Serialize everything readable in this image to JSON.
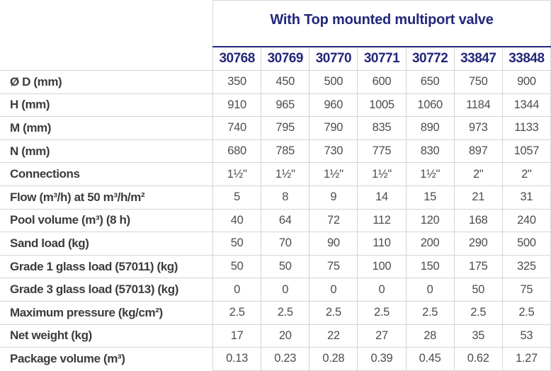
{
  "table": {
    "title": "With Top mounted multiport valve",
    "codes": [
      "30768",
      "30769",
      "30770",
      "30771",
      "30772",
      "33847",
      "33848"
    ],
    "rows": [
      {
        "label": "Ø D (mm)",
        "values": [
          "350",
          "450",
          "500",
          "600",
          "650",
          "750",
          "900"
        ]
      },
      {
        "label": "H (mm)",
        "values": [
          "910",
          "965",
          "960",
          "1005",
          "1060",
          "1184",
          "1344"
        ]
      },
      {
        "label": "M (mm)",
        "values": [
          "740",
          "795",
          "790",
          "835",
          "890",
          "973",
          "1133"
        ]
      },
      {
        "label": "N (mm)",
        "values": [
          "680",
          "785",
          "730",
          "775",
          "830",
          "897",
          "1057"
        ]
      },
      {
        "label": "Connections",
        "values": [
          "1½\"",
          "1½\"",
          "1½\"",
          "1½\"",
          "1½\"",
          "2\"",
          "2\""
        ]
      },
      {
        "label": "Flow (m³/h) at 50 m³/h/m²",
        "values": [
          "5",
          "8",
          "9",
          "14",
          "15",
          "21",
          "31"
        ]
      },
      {
        "label": "Pool volume (m³) (8 h)",
        "values": [
          "40",
          "64",
          "72",
          "112",
          "120",
          "168",
          "240"
        ]
      },
      {
        "label": "Sand load (kg)",
        "values": [
          "50",
          "70",
          "90",
          "110",
          "200",
          "290",
          "500"
        ]
      },
      {
        "label": "Grade 1 glass load (57011) (kg)",
        "values": [
          "50",
          "50",
          "75",
          "100",
          "150",
          "175",
          "325"
        ]
      },
      {
        "label": "Grade 3 glass load (57013) (kg)",
        "values": [
          "0",
          "0",
          "0",
          "0",
          "0",
          "50",
          "75"
        ]
      },
      {
        "label": "Maximum pressure (kg/cm²)",
        "values": [
          "2.5",
          "2.5",
          "2.5",
          "2.5",
          "2.5",
          "2.5",
          "2.5"
        ]
      },
      {
        "label": "Net weight (kg)",
        "values": [
          "17",
          "20",
          "22",
          "27",
          "28",
          "35",
          "53"
        ]
      },
      {
        "label": "Package volume (m³)",
        "values": [
          "0.13",
          "0.23",
          "0.28",
          "0.39",
          "0.45",
          "0.62",
          "1.27"
        ]
      }
    ],
    "colors": {
      "navy": "#23277b",
      "label_text": "#3c3c3c",
      "value_text": "#4d4d4d",
      "border": "#d4d4d4"
    }
  }
}
